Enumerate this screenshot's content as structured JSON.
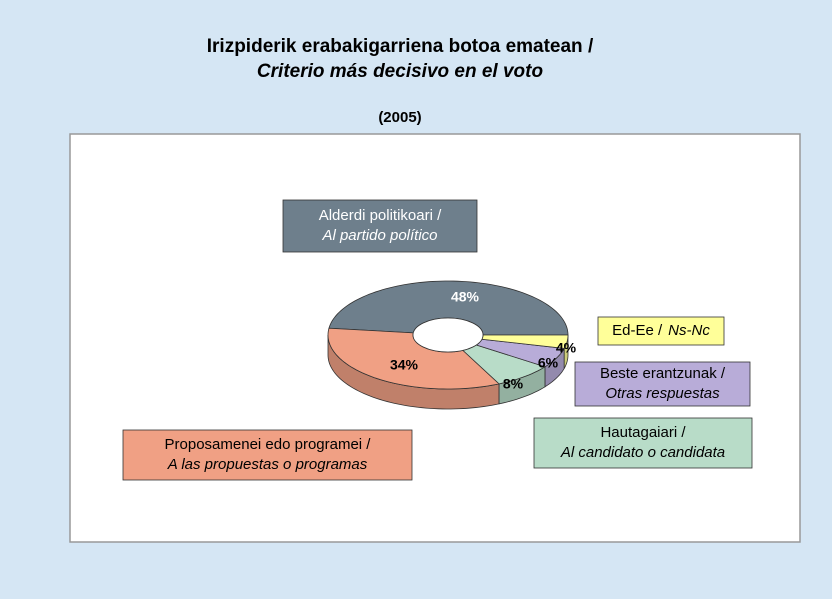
{
  "chart_data": {
    "type": "donut",
    "title": "Irizpiderik erabakigarriena botoa ematean /",
    "title_es": "Criterio más decisivo en el voto",
    "subtitle": "(2005)",
    "labels": [
      {
        "basque": "Alderdi politikoari /",
        "spanish": "Al partido político"
      },
      {
        "basque": "Proposamenei edo programei /",
        "spanish": "A las propuestas o programas"
      },
      {
        "basque": "Hautagaiari /",
        "spanish": "Al candidato o candidata"
      },
      {
        "basque": "Beste erantzunak /",
        "spanish": "Otras respuestas"
      },
      {
        "basque": "Ed-Ee /",
        "spanish": "Ns-Nc"
      }
    ],
    "values": [
      48,
      34,
      8,
      6,
      4
    ],
    "value_labels": [
      "48%",
      "34%",
      "8%",
      "6%",
      "4%"
    ],
    "colors": [
      "#6e7f8c",
      "#f0a084",
      "#b8dcc8",
      "#b8acd8",
      "#ffff99"
    ]
  }
}
